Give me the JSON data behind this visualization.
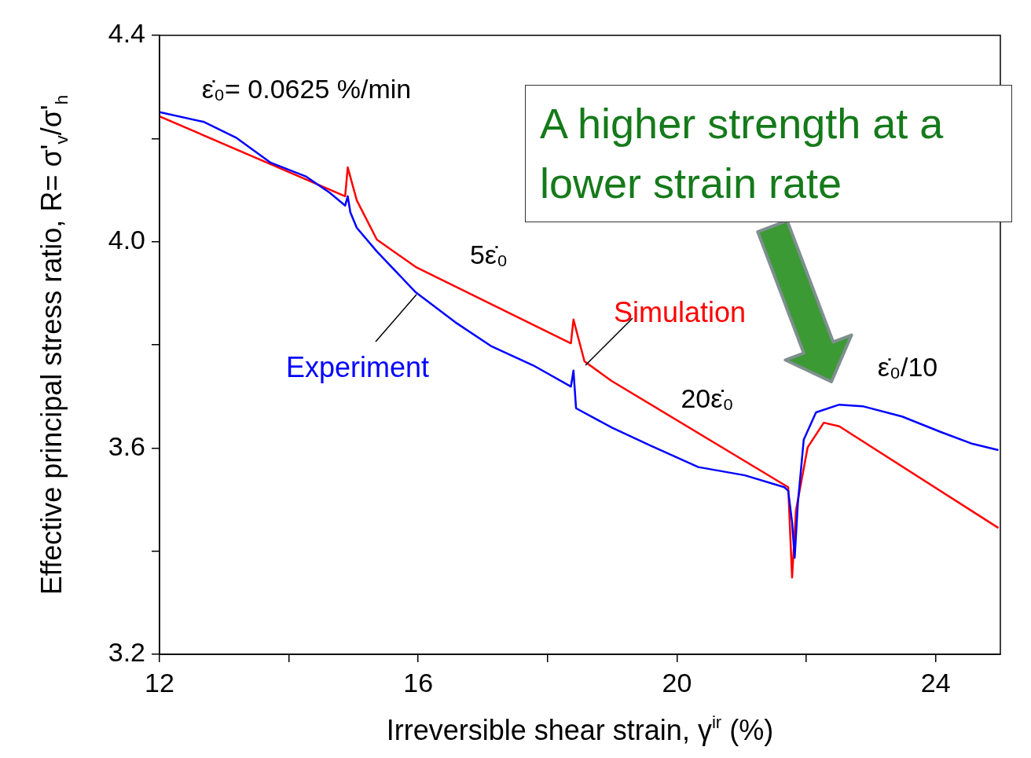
{
  "chart_data": {
    "type": "line",
    "xlabel": "Irreversible shear strain, γ$^{ir}$ (%)",
    "ylabel": "Effective principal stress ratio, R= σ'$_{v}$/σ'$_{h}$",
    "xlim": [
      12,
      25
    ],
    "ylim": [
      3.2,
      4.4
    ],
    "xticks": [
      12,
      {
        "value": 14,
        "label": null
      },
      16,
      {
        "value": 18,
        "label": null
      },
      20,
      {
        "value": 22,
        "label": null
      },
      24
    ],
    "yticks": [
      {
        "value": 3.2,
        "label": "3.2"
      },
      {
        "value": 3.4,
        "label": null
      },
      {
        "value": 3.6,
        "label": "3.6"
      },
      {
        "value": 3.8,
        "label": null
      },
      {
        "value": 4.0,
        "label": "4.0"
      },
      {
        "value": 4.2,
        "label": null
      },
      {
        "value": 4.4,
        "label": "4.4"
      }
    ],
    "marker": "none",
    "line_style": "solid",
    "series": [
      {
        "name": "Experiment",
        "color": "#0000ff",
        "x": [
          12,
          12.69,
          13.18,
          13.72,
          14.27,
          14.63,
          14.87,
          14.91,
          14.95,
          15.05,
          15.36,
          15.96,
          16.57,
          17.12,
          17.78,
          18.36,
          18.4,
          18.44,
          19.0,
          19.6,
          20.33,
          21.05,
          21.66,
          21.72,
          21.78,
          21.82,
          21.87,
          21.96,
          22.15,
          22.51,
          22.87,
          23.48,
          24.08,
          24.57,
          24.97
        ],
        "values": [
          4.251,
          4.232,
          4.202,
          4.153,
          4.126,
          4.095,
          4.07,
          4.088,
          4.057,
          4.027,
          3.981,
          3.902,
          3.844,
          3.798,
          3.76,
          3.719,
          3.75,
          3.677,
          3.639,
          3.604,
          3.563,
          3.547,
          3.524,
          3.517,
          3.456,
          3.387,
          3.494,
          3.616,
          3.669,
          3.684,
          3.681,
          3.661,
          3.631,
          3.608,
          3.596
        ]
      },
      {
        "name": "Simulation",
        "color": "#ff0000",
        "x": [
          12,
          14.87,
          14.91,
          15.05,
          15.36,
          15.96,
          18.36,
          18.4,
          18.57,
          18.99,
          21.72,
          21.78,
          21.84,
          22.02,
          22.27,
          22.51,
          24.97
        ],
        "values": [
          4.243,
          4.088,
          4.144,
          4.08,
          4.004,
          3.951,
          3.803,
          3.849,
          3.768,
          3.73,
          3.524,
          3.349,
          3.479,
          3.601,
          3.649,
          3.642,
          3.445
        ]
      }
    ],
    "annotations": [
      "ε̇₀= 0.0625 %/min",
      "5ε̇₀",
      "20ε̇₀",
      "ε̇₀/10",
      "A higher strength at a lower strain rate"
    ]
  }
}
